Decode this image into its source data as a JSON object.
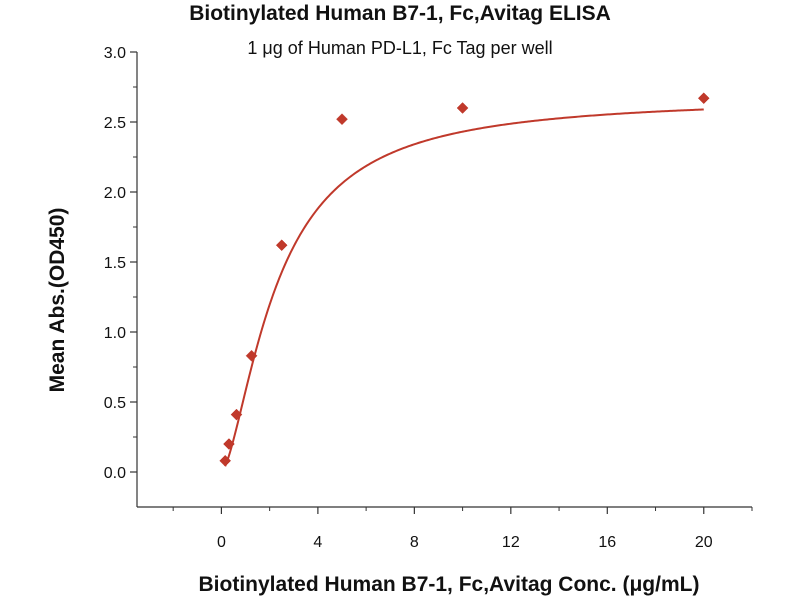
{
  "chart_data": {
    "type": "scatter",
    "title": "Biotinylated Human B7-1, Fc,Avitag ELISA",
    "subtitle": "1 μg of Human PD-L1, Fc Tag per well",
    "xlabel": "Biotinylated Human B7-1, Fc,Avitag Conc. (μg/mL)",
    "ylabel": "Mean Abs.(OD450)",
    "xlim": [
      -3.5,
      22
    ],
    "ylim": [
      -0.25,
      3.0
    ],
    "x_ticks": [
      0,
      4,
      8,
      12,
      16,
      20
    ],
    "x_tick_labels": [
      "0",
      "4",
      "8",
      "12",
      "16",
      "20"
    ],
    "y_ticks": [
      0.0,
      0.5,
      1.0,
      1.5,
      2.0,
      2.5,
      3.0
    ],
    "y_tick_labels": [
      "0.0",
      "0.5",
      "1.0",
      "1.5",
      "2.0",
      "2.5",
      "3.0"
    ],
    "grid": false,
    "series": [
      {
        "x": [
          0.156,
          0.3125,
          0.625,
          1.25,
          2.5,
          5,
          10,
          20
        ],
        "y": [
          0.08,
          0.2,
          0.41,
          0.83,
          1.62,
          2.52,
          2.6,
          2.67
        ],
        "color": "#c0392b",
        "marker": "diamond",
        "fit_curve": true
      }
    ]
  }
}
